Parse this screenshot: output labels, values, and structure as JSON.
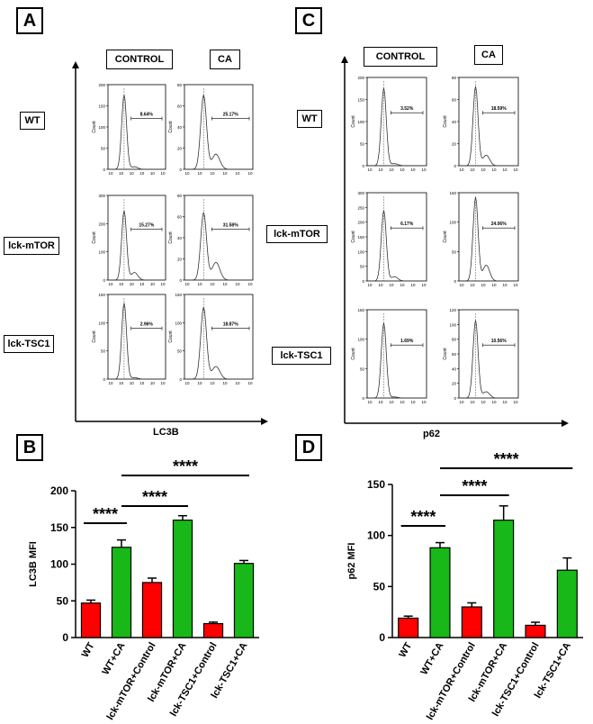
{
  "panel_labels": {
    "a": "A",
    "b": "B",
    "c": "C",
    "d": "D"
  },
  "flow_panels": [
    {
      "id": "A",
      "col_labels": [
        "CONTROL",
        "CA"
      ],
      "row_labels": [
        "WT",
        "lck-mTOR",
        "lck-TSC1"
      ],
      "x_axis_label": "LC3B",
      "histograms": [
        {
          "row": "WT",
          "col": "CONTROL",
          "percent": "8.64%",
          "ymax": 200,
          "yticks": [
            "0",
            "50",
            "100",
            "150",
            "200"
          ],
          "peak_frac": 0.88,
          "shoulder": 0.05
        },
        {
          "row": "WT",
          "col": "CA",
          "percent": "25.17%",
          "ymax": 80,
          "yticks": [
            "0",
            "20",
            "40",
            "60",
            "80"
          ],
          "peak_frac": 0.88,
          "shoulder": 0.3
        },
        {
          "row": "lck-mTOR",
          "col": "CONTROL",
          "percent": "15.27%",
          "ymax": 300,
          "yticks": [
            "0",
            "100",
            "200",
            "300"
          ],
          "peak_frac": 0.82,
          "shoulder": 0.15
        },
        {
          "row": "lck-mTOR",
          "col": "CA",
          "percent": "31.58%",
          "ymax": 80,
          "yticks": [
            "0",
            "20",
            "40",
            "60",
            "80"
          ],
          "peak_frac": 0.8,
          "shoulder": 0.35
        },
        {
          "row": "lck-TSC1",
          "col": "CONTROL",
          "percent": "2.96%",
          "ymax": 150,
          "yticks": [
            "0",
            "50",
            "100",
            "150"
          ],
          "peak_frac": 0.9,
          "shoulder": 0.03
        },
        {
          "row": "lck-TSC1",
          "col": "CA",
          "percent": "18.87%",
          "ymax": 150,
          "yticks": [
            "0",
            "50",
            "100",
            "150"
          ],
          "peak_frac": 0.85,
          "shoulder": 0.25
        }
      ]
    },
    {
      "id": "C",
      "col_labels": [
        "CONTROL",
        "CA"
      ],
      "row_labels": [
        "WT",
        "lck-mTOR",
        "lck-TSC1"
      ],
      "x_axis_label": "p62",
      "histograms": [
        {
          "row": "WT",
          "col": "CONTROL",
          "percent": "3.52%",
          "ymax": 200,
          "yticks": [
            "0",
            "50",
            "100",
            "150",
            "200"
          ],
          "peak_frac": 0.88,
          "shoulder": 0.04
        },
        {
          "row": "WT",
          "col": "CA",
          "percent": "18.59%",
          "ymax": 80,
          "yticks": [
            "0",
            "20",
            "40",
            "60",
            "80"
          ],
          "peak_frac": 0.9,
          "shoulder": 0.2
        },
        {
          "row": "lck-mTOR",
          "col": "CONTROL",
          "percent": "6.17%",
          "ymax": 300,
          "yticks": [
            "0",
            "50",
            "100",
            "150",
            "200",
            "250",
            "300"
          ],
          "peak_frac": 0.8,
          "shoulder": 0.08
        },
        {
          "row": "lck-mTOR",
          "col": "CA",
          "percent": "24.06%",
          "ymax": 150,
          "yticks": [
            "0",
            "50",
            "100",
            "150"
          ],
          "peak_frac": 0.95,
          "shoulder": 0.3
        },
        {
          "row": "lck-TSC1",
          "col": "CONTROL",
          "percent": "1.69%",
          "ymax": 150,
          "yticks": [
            "0",
            "50",
            "100",
            "150"
          ],
          "peak_frac": 0.85,
          "shoulder": 0.02
        },
        {
          "row": "lck-TSC1",
          "col": "CA",
          "percent": "10.56%",
          "ymax": 120,
          "yticks": [
            "0",
            "20",
            "40",
            "60",
            "80",
            "100",
            "120"
          ],
          "peak_frac": 0.88,
          "shoulder": 0.12
        }
      ]
    }
  ],
  "chart_data": [
    {
      "type": "bar",
      "panel": "B",
      "title": "",
      "xlabel": "",
      "ylabel": "LC3B MFI",
      "ylim": [
        0,
        200
      ],
      "yticks": [
        0,
        50,
        100,
        150,
        200
      ],
      "categories": [
        "WT",
        "WT+CA",
        "lck-mTOR+Control",
        "lck-mTOR+CA",
        "lck-TSC1+Control",
        "lck-TSC1+CA"
      ],
      "values": [
        47,
        123,
        75,
        160,
        19,
        101
      ],
      "errors": [
        4,
        10,
        6,
        6,
        2,
        4
      ],
      "colors": [
        "#ff0000",
        "#17b817",
        "#ff0000",
        "#17b817",
        "#ff0000",
        "#17b817"
      ],
      "significance": [
        {
          "from": 0,
          "to": 1,
          "label": "****"
        },
        {
          "from": 1,
          "to": 3,
          "label": "****"
        },
        {
          "from": 1,
          "to": 5,
          "label": "****"
        }
      ]
    },
    {
      "type": "bar",
      "panel": "D",
      "title": "",
      "xlabel": "",
      "ylabel": "p62 MFI",
      "ylim": [
        0,
        150
      ],
      "yticks": [
        0,
        50,
        100,
        150
      ],
      "categories": [
        "WT",
        "WT+CA",
        "lck-mTOR+Control",
        "lck-mTOR+CA",
        "lck-TSC1+Control",
        "lck-TSC1+CA"
      ],
      "values": [
        19,
        88,
        30,
        115,
        12,
        66
      ],
      "errors": [
        2,
        5,
        4,
        14,
        3,
        12
      ],
      "colors": [
        "#ff0000",
        "#17b817",
        "#ff0000",
        "#17b817",
        "#ff0000",
        "#17b817"
      ],
      "significance": [
        {
          "from": 0,
          "to": 1,
          "label": "****"
        },
        {
          "from": 1,
          "to": 3,
          "label": "****"
        },
        {
          "from": 1,
          "to": 5,
          "label": "****"
        }
      ]
    }
  ]
}
